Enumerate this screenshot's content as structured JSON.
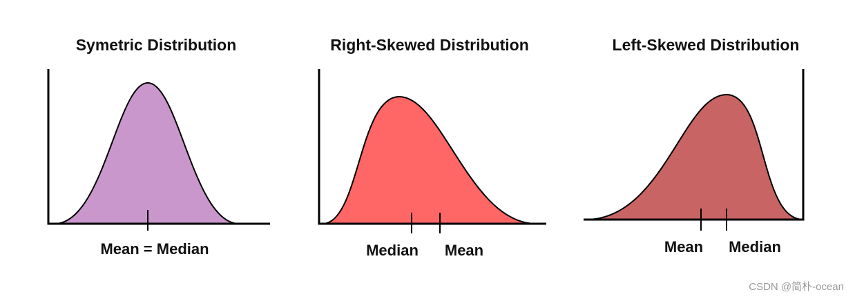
{
  "panels": [
    {
      "title": "Symetric Distribution",
      "labels": [
        "Mean = Median"
      ]
    },
    {
      "title": "Right-Skewed Distribution",
      "labels": [
        "Median",
        "Mean"
      ]
    },
    {
      "title": "Left-Skewed Distribution",
      "labels": [
        "Mean",
        "Median"
      ]
    }
  ],
  "watermark": "CSDN @简朴-ocean"
}
